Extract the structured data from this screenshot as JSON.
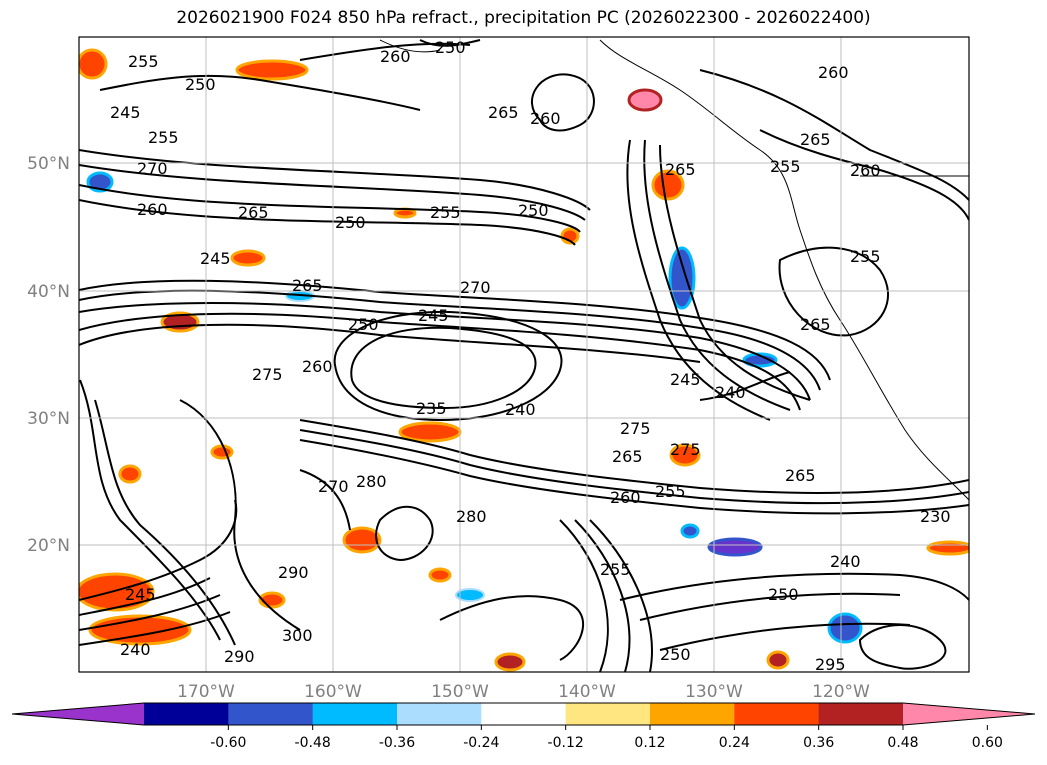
{
  "title": "2026021900 F024 850 hPa refract., precipitation PC (2026022300 - 2026022400)",
  "lat_labels": [
    "50°N",
    "40°N",
    "30°N",
    "20°N"
  ],
  "lon_labels": [
    "170°W",
    "160°W",
    "150°W",
    "140°W",
    "130°W",
    "120°W"
  ],
  "contour_labels": [
    "255",
    "250",
    "245",
    "255",
    "270",
    "260",
    "265",
    "250",
    "255",
    "250",
    "245",
    "265",
    "270",
    "250",
    "245",
    "275",
    "260",
    "235",
    "240",
    "275",
    "265",
    "275",
    "280",
    "280",
    "270",
    "260",
    "255",
    "245",
    "240",
    "265",
    "230",
    "240",
    "250",
    "295",
    "290",
    "300",
    "290",
    "265",
    "255",
    "260",
    "265",
    "260",
    "260",
    "250",
    "260",
    "265",
    "265",
    "255",
    "255",
    "250",
    "245",
    "240"
  ],
  "colorbar": {
    "ticks": [
      "-0.60",
      "-0.48",
      "-0.36",
      "-0.24",
      "-0.12",
      "0.12",
      "0.24",
      "0.36",
      "0.48",
      "0.60"
    ],
    "colors": [
      "#9933cc",
      "#000099",
      "#3355cc",
      "#00bbff",
      "#aaddff",
      "#ffffff",
      "#ffe680",
      "#ffa500",
      "#ff4400",
      "#b22222",
      "#ff88aa"
    ]
  }
}
